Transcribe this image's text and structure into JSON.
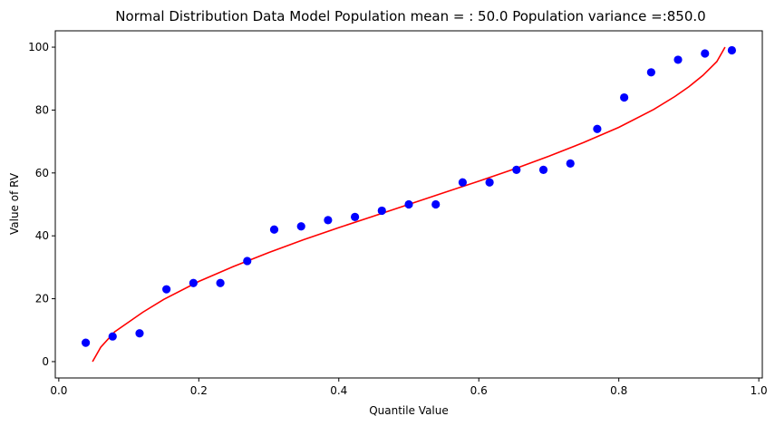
{
  "chart_data": {
    "type": "scatter",
    "title": "Normal Distribution Data Model Population mean = : 50.0 Population variance =:850.0",
    "xlabel": "Quantile Value",
    "ylabel": "Value of RV",
    "xlim": [
      -0.005,
      1.005
    ],
    "ylim": [
      -5.2,
      105.2
    ],
    "xticks": [
      0.0,
      0.2,
      0.4,
      0.6,
      0.8,
      1.0
    ],
    "xtick_labels": [
      "0.0",
      "0.2",
      "0.4",
      "0.6",
      "0.8",
      "1.0"
    ],
    "yticks": [
      0,
      20,
      40,
      60,
      80,
      100
    ],
    "ytick_labels": [
      "0",
      "20",
      "40",
      "60",
      "80",
      "100"
    ],
    "grid": false,
    "series": [
      {
        "kind": "scatter",
        "color": "#0000ff",
        "x": [
          0.0385,
          0.0769,
          0.1154,
          0.1538,
          0.1923,
          0.2308,
          0.2692,
          0.3077,
          0.3462,
          0.3846,
          0.4231,
          0.4615,
          0.5,
          0.5385,
          0.5769,
          0.6154,
          0.6538,
          0.6923,
          0.7308,
          0.7692,
          0.8077,
          0.8462,
          0.8846,
          0.9231,
          0.9615
        ],
        "y": [
          6,
          8,
          9,
          23,
          25,
          25,
          32,
          42,
          43,
          45,
          46,
          48,
          50,
          50,
          57,
          57,
          61,
          61,
          63,
          74,
          84,
          92,
          96,
          98,
          99
        ]
      },
      {
        "kind": "line",
        "color": "#ff0000",
        "x": [
          0.0482,
          0.06,
          0.08,
          0.1,
          0.12,
          0.15,
          0.2,
          0.25,
          0.3,
          0.35,
          0.4,
          0.45,
          0.5,
          0.55,
          0.6,
          0.65,
          0.7,
          0.75,
          0.8,
          0.85,
          0.88,
          0.9,
          0.92,
          0.94,
          0.9518
        ],
        "y": [
          0.0,
          4.6,
          9.5,
          12.6,
          15.7,
          19.8,
          25.5,
          30.3,
          34.7,
          38.8,
          42.6,
          46.3,
          50.0,
          53.7,
          57.4,
          61.2,
          65.3,
          69.7,
          74.5,
          80.2,
          84.3,
          87.4,
          91.0,
          95.4,
          100.0
        ]
      }
    ]
  }
}
